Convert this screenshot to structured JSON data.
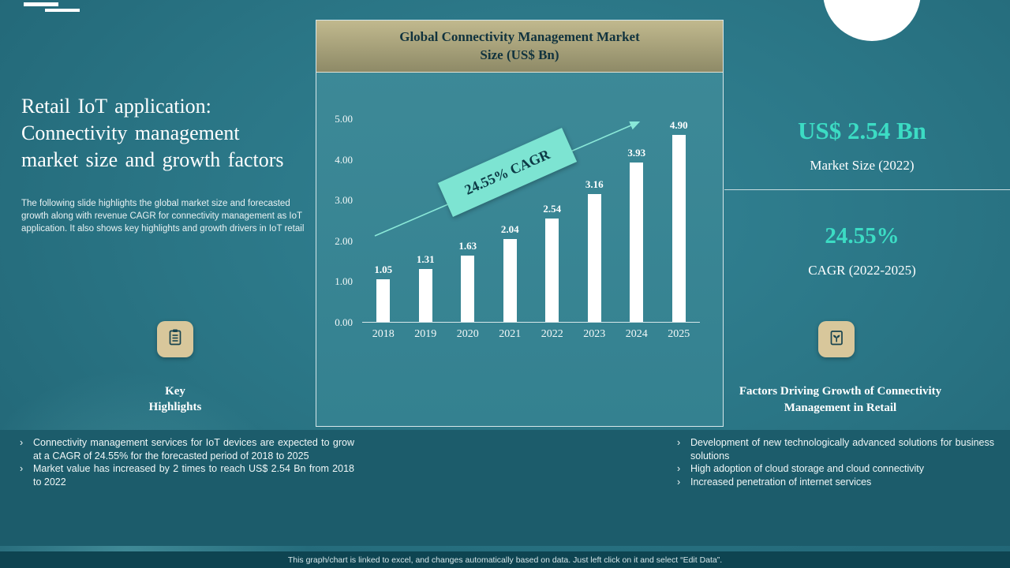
{
  "slide": {
    "title": "Retail IoT application:\nConnectivity management\nmarket size and growth factors",
    "description": "The following slide highlights the global market size and forecasted growth along with revenue CAGR for connectivity management as IoT application. It also shows key highlights and growth drivers in IoT retail",
    "bullet_char": "›"
  },
  "chart_data": {
    "type": "bar",
    "title": "Global Connectivity Management Market\nSize (US$ Bn)",
    "categories": [
      "2018",
      "2019",
      "2020",
      "2021",
      "2022",
      "2023",
      "2024",
      "2025"
    ],
    "values": [
      1.05,
      1.31,
      1.63,
      2.04,
      2.54,
      3.16,
      3.93,
      4.9
    ],
    "xlabel": "",
    "ylabel": "",
    "ylim": [
      0,
      5
    ],
    "ytick_labels": [
      "0.00",
      "1.00",
      "2.00",
      "3.00",
      "4.00",
      "5.00"
    ],
    "grid": false,
    "legend": "none",
    "bar_color": "#ffffff",
    "annotation": "24.55% CAGR",
    "trend_arrow": "up-right"
  },
  "key_highlights": {
    "label": "Key\nHighlights",
    "items": [
      "Connectivity management services for IoT devices are expected to grow at a CAGR of 24.55% for the forecasted period of 2018 to 2025",
      "Market value has increased by 2 times to reach US$ 2.54 Bn from 2018 to 2022"
    ]
  },
  "stats": {
    "market_size_value": "US$ 2.54 Bn",
    "market_size_label": "Market Size (2022)",
    "cagr_value": "24.55%",
    "cagr_label": "CAGR (2022-2025)"
  },
  "growth_factors": {
    "heading": "Factors Driving Growth of Connectivity Management in Retail",
    "items": [
      "Development of new technologically advanced solutions for business solutions",
      "High adoption of cloud storage and cloud connectivity",
      "Increased penetration of internet services"
    ]
  },
  "footer": {
    "note": "This graph/chart is linked to excel, and changes automatically based on data. Just left click on it and select “Edit Data”."
  },
  "colors": {
    "accent_teal": "#3cdcc4",
    "banner_mint": "#7de4d2",
    "icon_beige": "#d8c79b",
    "bar_white": "#ffffff",
    "band_dark": "#1c5c6b",
    "footer_dark": "#0e4451"
  }
}
